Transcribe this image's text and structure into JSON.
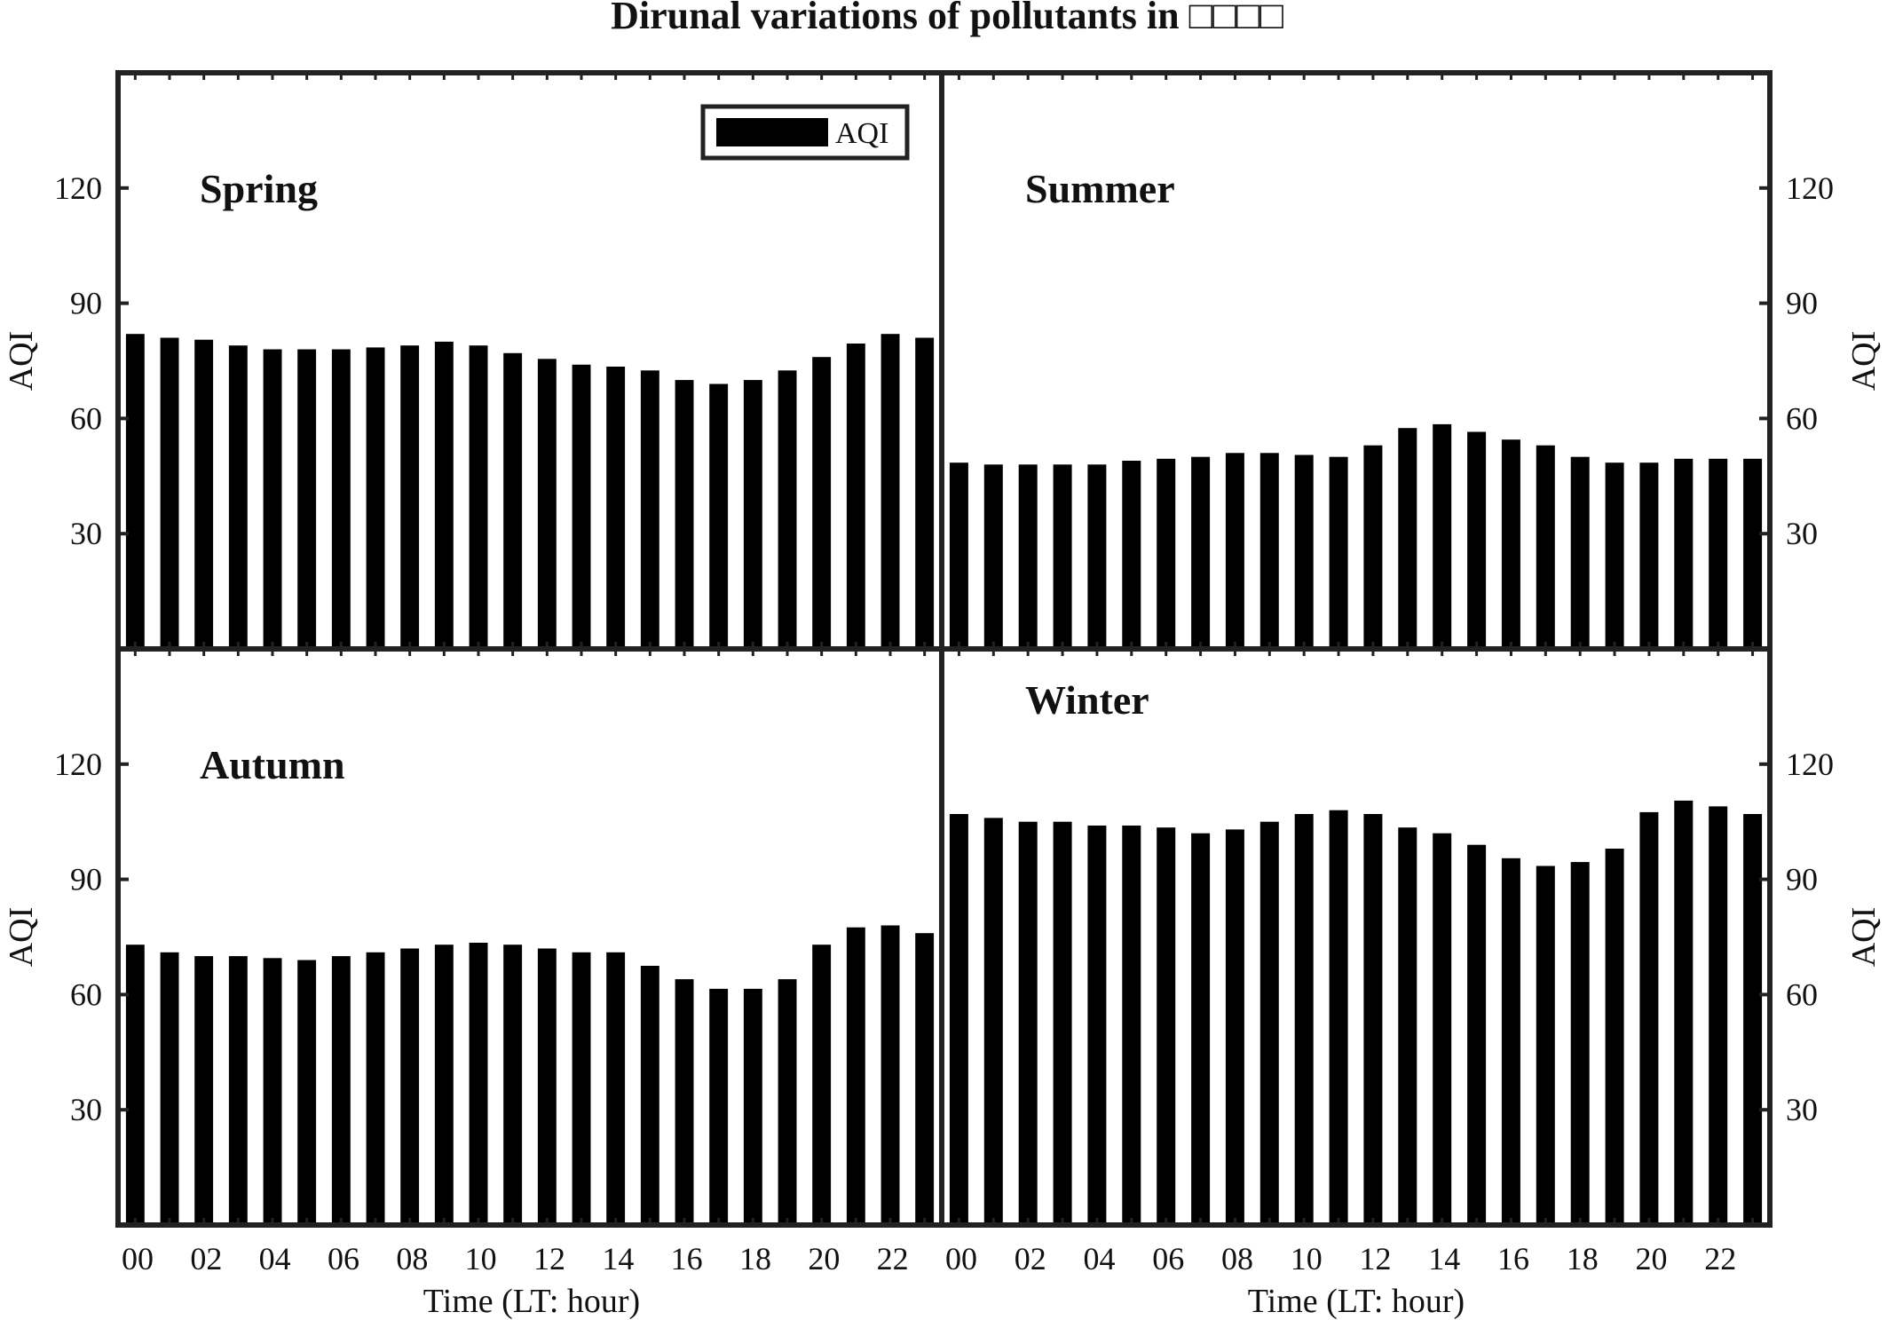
{
  "chart_data": {
    "type": "bar",
    "title": "Dirunal variations of pollutants in □□□□",
    "legend": [
      "AQI"
    ],
    "legend_placement": "top-right of Spring panel",
    "xlabel": "Time (LT: hour)",
    "ylabel": "AQI",
    "categories": [
      "00",
      "01",
      "02",
      "03",
      "04",
      "05",
      "06",
      "07",
      "08",
      "09",
      "10",
      "11",
      "12",
      "13",
      "14",
      "15",
      "16",
      "17",
      "18",
      "19",
      "20",
      "21",
      "22",
      "23"
    ],
    "x_tick_labels": [
      "00",
      "02",
      "04",
      "06",
      "08",
      "10",
      "12",
      "14",
      "16",
      "18",
      "20",
      "22"
    ],
    "yticks": [
      30,
      60,
      90,
      120
    ],
    "ylim": [
      0,
      150
    ],
    "grid": false,
    "panels": [
      {
        "name": "Spring",
        "values": [
          82,
          81,
          80.5,
          79,
          78,
          78,
          78,
          78.5,
          79,
          80,
          79,
          77,
          75.5,
          74,
          73.5,
          72.5,
          70,
          69,
          70,
          72.5,
          76,
          79.5,
          82,
          81
        ]
      },
      {
        "name": "Summer",
        "values": [
          48.5,
          48,
          48,
          48,
          48,
          49,
          49.5,
          50,
          51,
          51,
          50.5,
          50,
          53,
          57.5,
          58.5,
          56.5,
          54.5,
          53,
          50,
          48.5,
          48.5,
          49.5,
          49.5,
          49.5
        ]
      },
      {
        "name": "Autumn",
        "values": [
          73,
          71,
          70,
          70,
          69.5,
          69,
          70,
          71,
          72,
          73,
          73.5,
          73,
          72,
          71,
          71,
          67.5,
          64,
          61.5,
          61.5,
          64,
          73,
          77.5,
          78,
          76
        ]
      },
      {
        "name": "Winter",
        "values": [
          107,
          106,
          105,
          105,
          104,
          104,
          103.5,
          102,
          103,
          105,
          107,
          108,
          107,
          103.5,
          102,
          99,
          95.5,
          93.5,
          94.5,
          98,
          107.5,
          110.5,
          109,
          107
        ]
      }
    ]
  }
}
